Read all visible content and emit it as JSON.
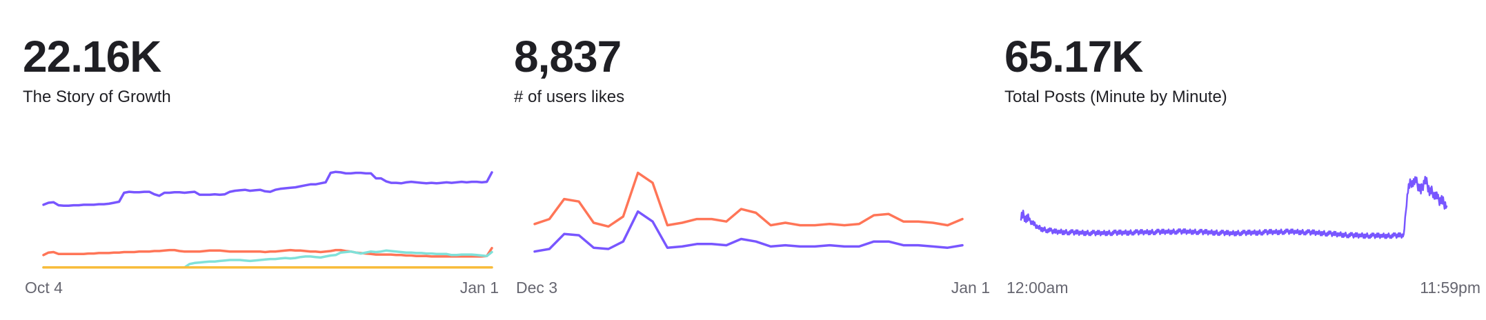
{
  "colors": {
    "purple": "#7856ff",
    "orange": "#ff7557",
    "teal": "#80e1d9",
    "yellow": "#f8bc3b"
  },
  "chart_data": [
    {
      "type": "line",
      "title": "22.16K",
      "subtitle": "The Story of Growth",
      "x_start_label": "Oct 4",
      "x_end_label": "Jan 1",
      "ylim": [
        0,
        22160
      ],
      "series": [
        {
          "color": "#7856ff",
          "values": [
            12900,
            13300,
            13400,
            12800,
            12700,
            12700,
            12800,
            12800,
            12900,
            12900,
            12900,
            13000,
            13000,
            13100,
            13300,
            13500,
            15300,
            15500,
            15400,
            15400,
            15500,
            15500,
            15000,
            14700,
            15300,
            15300,
            15400,
            15400,
            15300,
            15400,
            15500,
            14900,
            14900,
            14900,
            15000,
            14900,
            15000,
            15500,
            15700,
            15800,
            15900,
            15700,
            15800,
            15900,
            15600,
            15500,
            15900,
            16100,
            16200,
            16300,
            16400,
            16600,
            16800,
            17000,
            17000,
            17200,
            17400,
            19300,
            19500,
            19400,
            19200,
            19200,
            19300,
            19300,
            19200,
            19200,
            18200,
            18200,
            17600,
            17300,
            17300,
            17200,
            17400,
            17500,
            17400,
            17300,
            17200,
            17300,
            17200,
            17300,
            17400,
            17300,
            17400,
            17500,
            17400,
            17500,
            17500,
            17400,
            17500,
            19400
          ]
        },
        {
          "color": "#ff7557",
          "values": [
            2800,
            3300,
            3400,
            3000,
            3000,
            3000,
            3000,
            3000,
            3000,
            3100,
            3100,
            3200,
            3200,
            3200,
            3300,
            3300,
            3400,
            3400,
            3400,
            3500,
            3500,
            3500,
            3600,
            3600,
            3700,
            3800,
            3800,
            3600,
            3500,
            3500,
            3500,
            3500,
            3600,
            3700,
            3700,
            3700,
            3600,
            3500,
            3500,
            3500,
            3500,
            3500,
            3500,
            3500,
            3400,
            3500,
            3500,
            3600,
            3700,
            3800,
            3700,
            3700,
            3600,
            3500,
            3500,
            3400,
            3500,
            3600,
            3800,
            3800,
            3600,
            3500,
            3300,
            3200,
            3100,
            3000,
            2900,
            2900,
            2900,
            2900,
            2800,
            2800,
            2700,
            2700,
            2600,
            2600,
            2600,
            2500,
            2500,
            2500,
            2500,
            2500,
            2500,
            2500,
            2500,
            2500,
            2500,
            2500,
            2600,
            4200
          ]
        },
        {
          "color": "#80e1d9",
          "values": [
            300,
            300,
            300,
            300,
            300,
            300,
            300,
            300,
            300,
            300,
            300,
            300,
            300,
            300,
            300,
            300,
            300,
            300,
            300,
            300,
            300,
            300,
            300,
            300,
            300,
            300,
            300,
            300,
            300,
            1000,
            1200,
            1300,
            1400,
            1500,
            1500,
            1600,
            1700,
            1800,
            1800,
            1800,
            1700,
            1600,
            1700,
            1800,
            1900,
            2000,
            2000,
            2100,
            2200,
            2100,
            2200,
            2400,
            2500,
            2500,
            2400,
            2300,
            2500,
            2700,
            2800,
            3300,
            3400,
            3500,
            3300,
            3100,
            3300,
            3500,
            3400,
            3500,
            3700,
            3600,
            3500,
            3400,
            3300,
            3300,
            3200,
            3200,
            3100,
            3100,
            3000,
            3000,
            3000,
            2800,
            2800,
            2900,
            2900,
            2900,
            2800,
            2700,
            2600,
            3400
          ]
        },
        {
          "color": "#f8bc3b",
          "values": [
            300,
            300,
            300,
            300,
            300,
            300,
            300,
            300,
            300,
            300,
            300,
            300,
            300,
            300,
            300,
            300,
            300,
            300,
            300,
            300,
            300,
            300,
            300,
            300,
            300,
            300,
            300,
            300,
            300,
            300,
            300,
            300,
            300,
            300,
            300,
            300,
            300,
            300,
            300,
            300,
            300,
            300,
            300,
            300,
            300,
            300,
            300,
            300,
            300,
            300,
            300,
            300,
            300,
            300,
            300,
            300,
            300,
            300,
            300,
            300,
            300,
            300,
            300,
            300,
            300,
            300,
            300,
            300,
            300,
            300,
            300,
            300,
            300,
            300,
            300,
            300,
            300,
            300,
            300,
            300,
            300,
            300,
            300,
            300,
            300,
            300,
            300,
            300,
            300,
            300
          ]
        }
      ]
    },
    {
      "type": "line",
      "title": "8,837",
      "subtitle": "# of users likes",
      "x_start_label": "Dec 3",
      "x_end_label": "Jan 1",
      "ylim": [
        0,
        8837
      ],
      "series": [
        {
          "color": "#ff7557",
          "values": [
            3600,
            4000,
            5600,
            5400,
            3700,
            3400,
            4200,
            7700,
            6900,
            3500,
            3700,
            4000,
            4000,
            3800,
            4800,
            4500,
            3500,
            3700,
            3500,
            3500,
            3600,
            3500,
            3600,
            4300,
            4400,
            3800,
            3800,
            3700,
            3500,
            4000
          ]
        },
        {
          "color": "#7856ff",
          "values": [
            1400,
            1600,
            2800,
            2700,
            1700,
            1600,
            2200,
            4600,
            3800,
            1700,
            1800,
            2000,
            2000,
            1900,
            2400,
            2200,
            1800,
            1900,
            1800,
            1800,
            1900,
            1800,
            1800,
            2200,
            2200,
            1900,
            1900,
            1800,
            1700,
            1900
          ]
        }
      ]
    },
    {
      "type": "line",
      "title": "65.17K",
      "subtitle": "Total Posts (Minute by Minute)",
      "x_start_label": "12:00am",
      "x_end_label": "11:59pm",
      "ylim": [
        0,
        65170
      ],
      "series": [
        {
          "color": "#7856ff",
          "values": [
            32000,
            31000,
            28500,
            26500,
            24500,
            23500,
            23000,
            22500,
            22000,
            22000,
            21800,
            21700,
            21600,
            21500,
            21400,
            21300,
            21300,
            21200,
            21200,
            21200,
            21300,
            21300,
            21400,
            21400,
            21500,
            21500,
            21600,
            21600,
            21700,
            21700,
            21800,
            21800,
            21900,
            21900,
            22000,
            22000,
            22100,
            22100,
            22100,
            22000,
            22000,
            21900,
            21800,
            21700,
            21600,
            21500,
            21400,
            21300,
            21200,
            21100,
            21200,
            21300,
            21300,
            21400,
            21500,
            21500,
            21600,
            21700,
            21800,
            21800,
            21900,
            22000,
            22000,
            22000,
            21900,
            21800,
            21700,
            21600,
            21500,
            21300,
            21200,
            21000,
            20800,
            20600,
            20400,
            20200,
            20000,
            19900,
            19800,
            19800,
            19700,
            19700,
            19600,
            19600,
            19600,
            19600,
            19700,
            19700,
            19800,
            19800,
            48000,
            52000,
            51000,
            46000,
            53000,
            46500,
            45000,
            41000,
            40000,
            37000
          ]
        }
      ]
    }
  ]
}
